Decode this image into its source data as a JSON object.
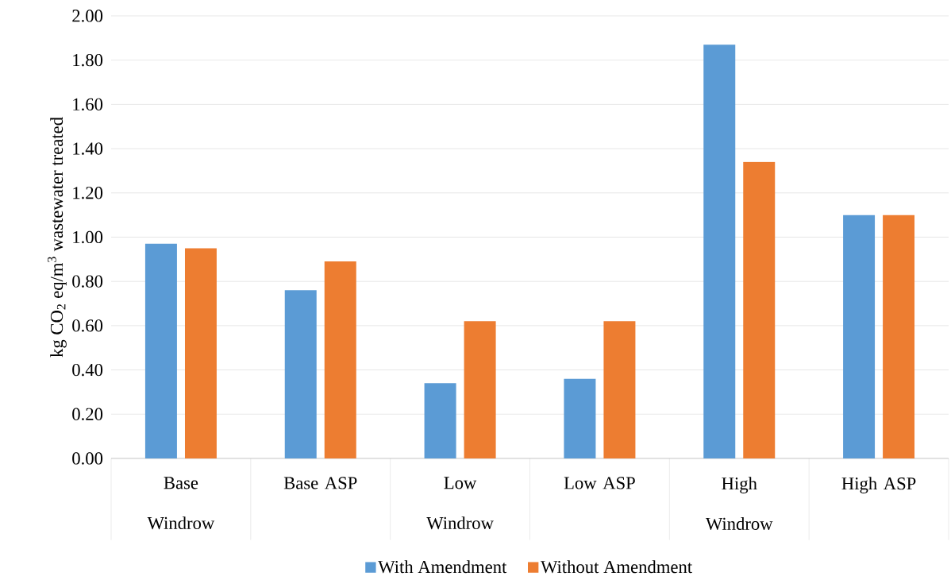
{
  "chart_data": {
    "type": "bar",
    "ylabel": "kg CO$_{2}$ eq/m$^{3}$ wastewater treated",
    "categories": [
      "Base Windrow",
      "Base ASP",
      "Low Windrow",
      "Low ASP",
      "High Windrow",
      "High ASP"
    ],
    "series": [
      {
        "name": "With Amendment",
        "color": "#5b9bd5",
        "values": [
          0.97,
          0.76,
          0.34,
          0.36,
          1.87,
          1.1
        ]
      },
      {
        "name": "Without Amendment",
        "color": "#ed7d31",
        "values": [
          0.95,
          0.89,
          0.62,
          0.62,
          1.34,
          1.1
        ]
      }
    ],
    "ylim": [
      0,
      2
    ],
    "yticks": [
      {
        "value": 0,
        "label": "0.00"
      },
      {
        "value": 0.2,
        "label": "0.20"
      },
      {
        "value": 0.4,
        "label": "0.40"
      },
      {
        "value": 0.6,
        "label": "0.60"
      },
      {
        "value": 0.8,
        "label": "0.80"
      },
      {
        "value": 1.0,
        "label": "1.00"
      },
      {
        "value": 1.2,
        "label": "1.20"
      },
      {
        "value": 1.4,
        "label": "1.40"
      },
      {
        "value": 1.6,
        "label": "1.60"
      },
      {
        "value": 1.8,
        "label": "1.80"
      },
      {
        "value": 2.0,
        "label": "2.00"
      }
    ],
    "grid": "y",
    "legend": "bottom"
  }
}
